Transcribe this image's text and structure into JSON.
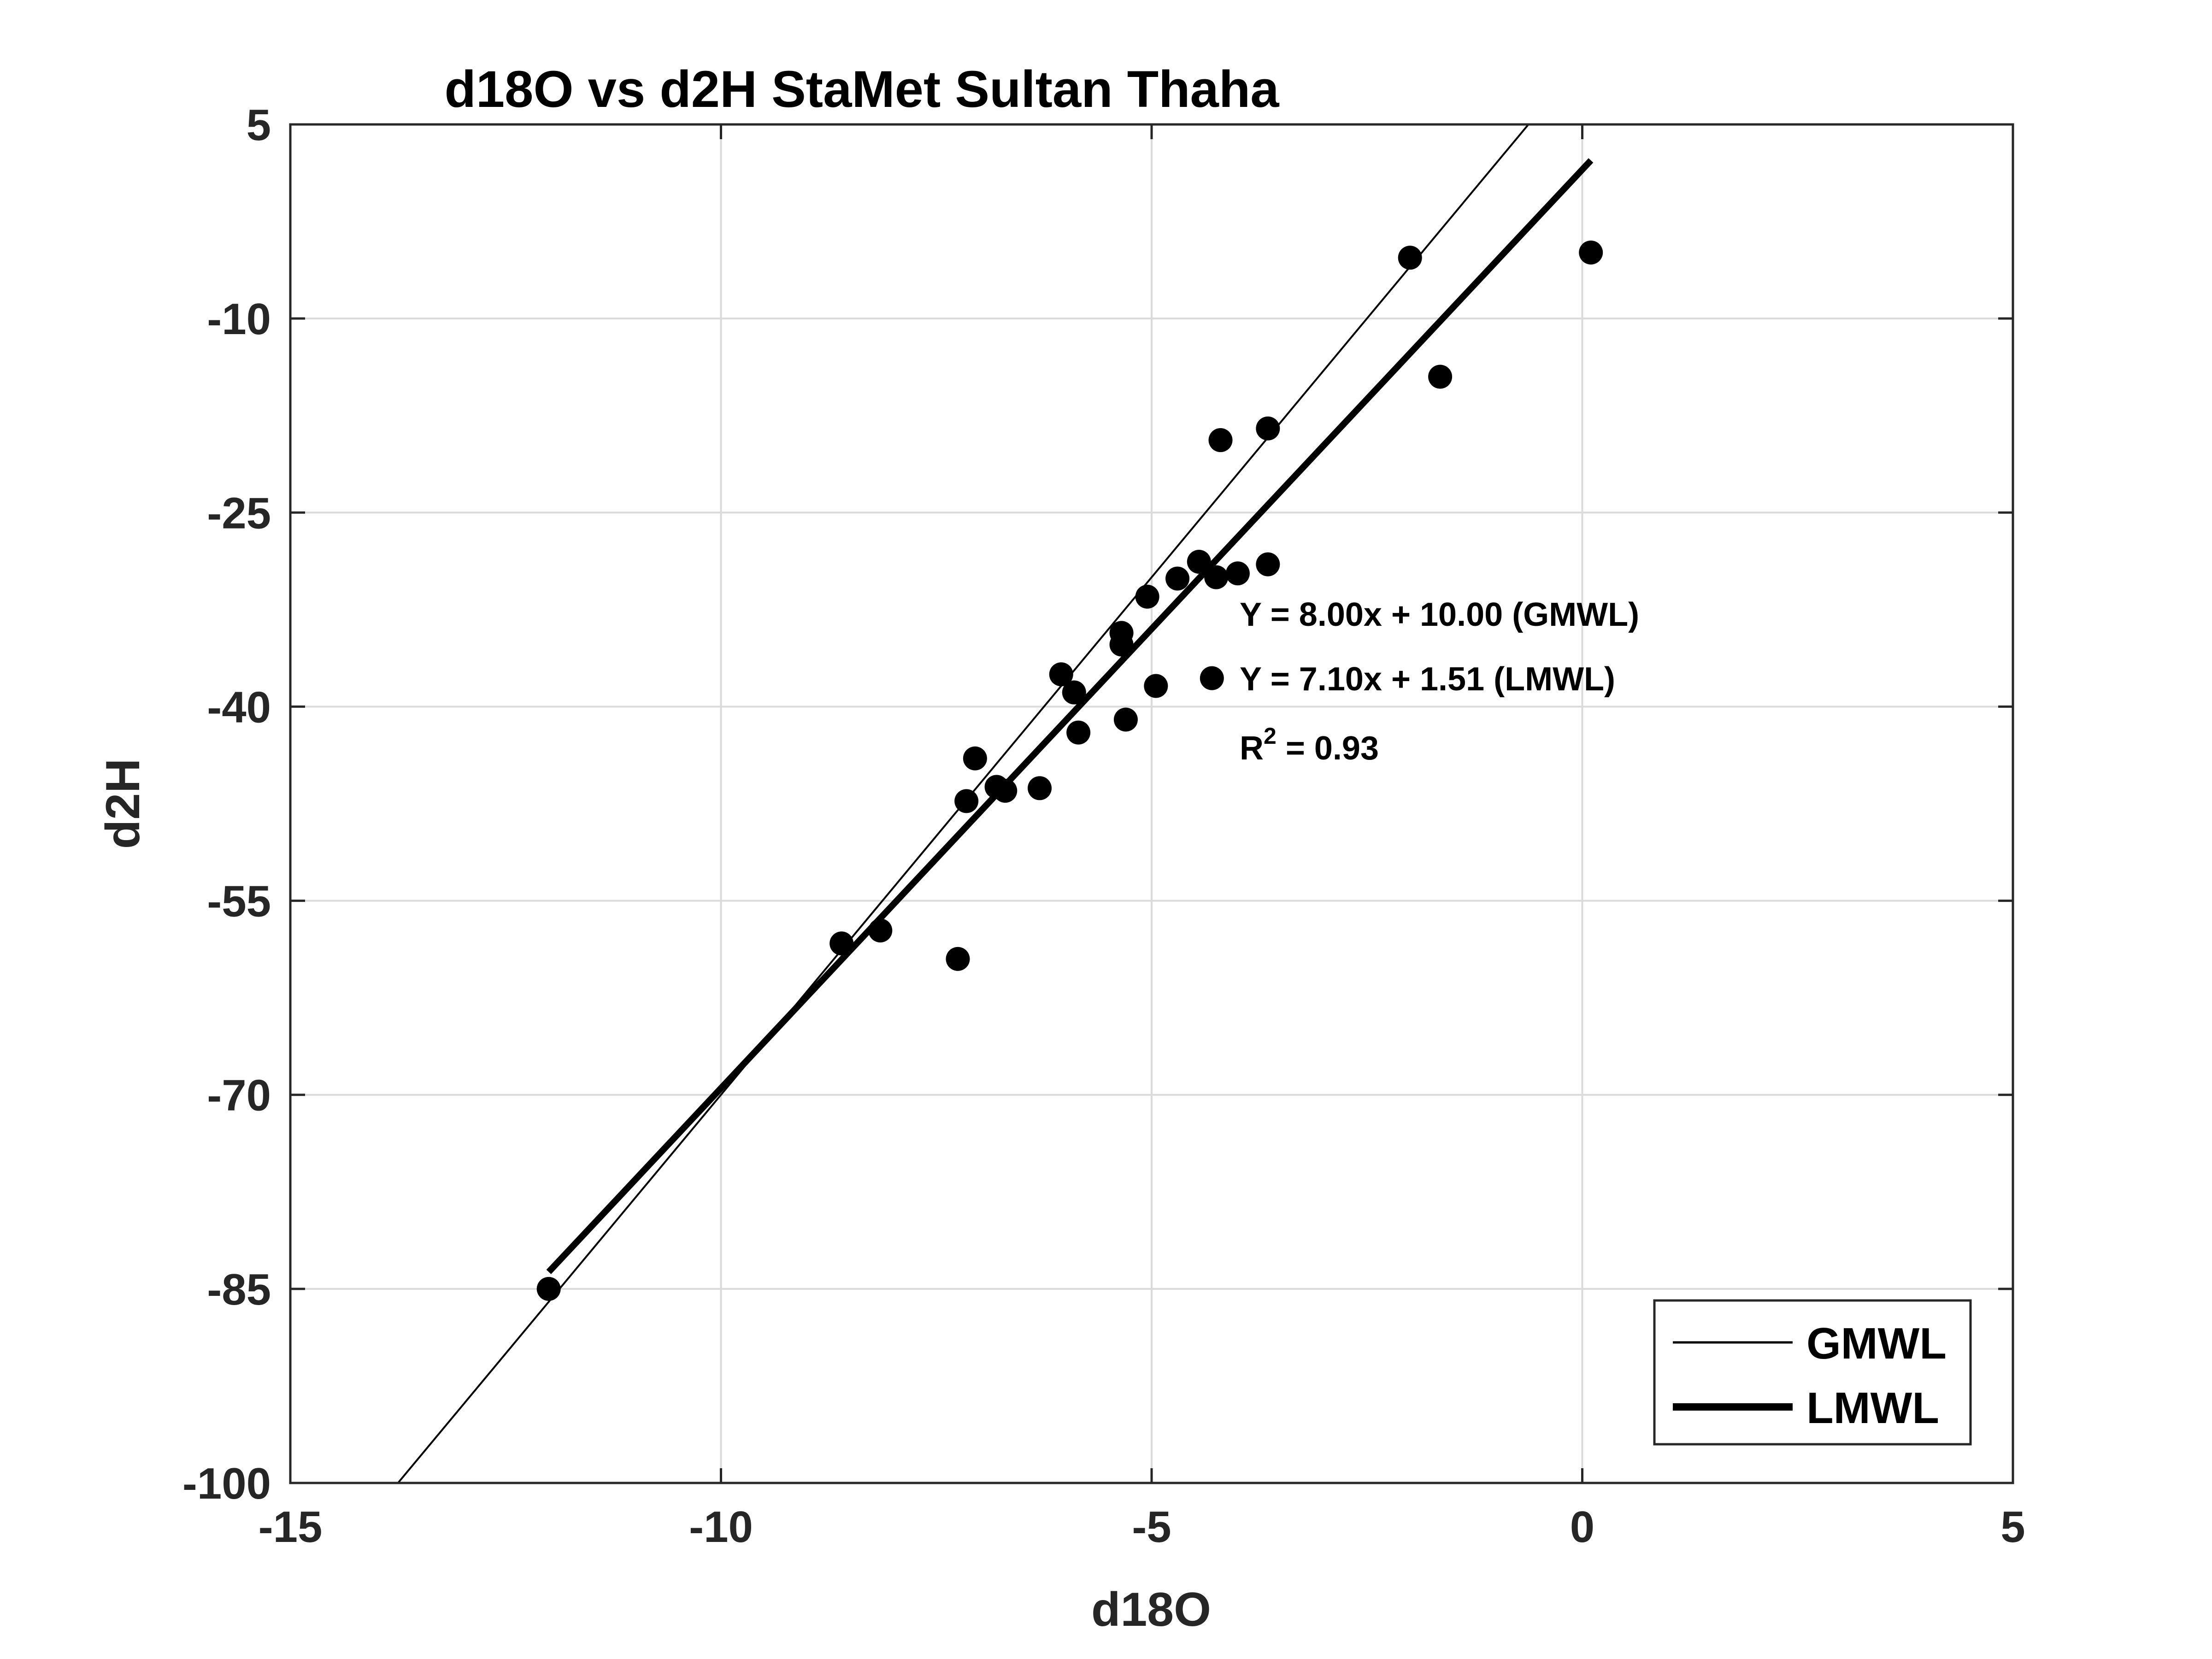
{
  "chart_data": {
    "type": "scatter",
    "title": "d18O vs d2H StaMet Sultan Thaha",
    "xlabel": "d18O",
    "ylabel": "d2H",
    "xlim": [
      -15,
      5
    ],
    "ylim": [
      -100,
      5
    ],
    "xticks": [
      -15,
      -10,
      -5,
      0,
      5
    ],
    "yticks": [
      -100,
      -85,
      -70,
      -55,
      -40,
      -25,
      -10,
      5
    ],
    "xtick_labels": [
      "-15",
      "-10",
      "-5",
      "0",
      "5"
    ],
    "ytick_labels": [
      "-100",
      "-85",
      "-70",
      "-55",
      "-40",
      "-25",
      "-10",
      "5"
    ],
    "grid": true,
    "legend_position": "bottom-right",
    "series": [
      {
        "name": "",
        "kind": "points",
        "color": "#000000",
        "x": [
          -12.0,
          -8.6,
          -8.15,
          -7.25,
          -7.15,
          -7.05,
          -6.8,
          -6.7,
          -6.3,
          -6.05,
          -5.9,
          -5.85,
          -5.35,
          -5.35,
          -5.3,
          -5.05,
          -4.95,
          -4.7,
          -4.45,
          -4.3,
          -4.25,
          -4.2,
          -4.0,
          -3.65,
          -3.65,
          -2.0,
          -1.65,
          0.1
        ],
        "y": [
          -85.0,
          -58.3,
          -57.3,
          -59.5,
          -47.3,
          -44.0,
          -46.2,
          -46.5,
          -46.3,
          -37.5,
          -38.9,
          -42.0,
          -34.3,
          -35.2,
          -41.0,
          -31.5,
          -38.4,
          -30.1,
          -28.8,
          -37.8,
          -30.0,
          -19.4,
          -29.7,
          -18.5,
          -29.0,
          -5.3,
          -14.5,
          -4.9
        ]
      },
      {
        "name": "GMWL",
        "kind": "line",
        "color": "#000000",
        "slope": 8.0,
        "intercept": 10.0,
        "x_range": [
          -13.75,
          -0.625
        ],
        "stroke_width": 4
      },
      {
        "name": "LMWL",
        "kind": "line",
        "color": "#000000",
        "slope": 7.1,
        "intercept": 1.51,
        "x_range": [
          -12.0,
          0.1
        ],
        "stroke_width": 14
      }
    ],
    "annotations": {
      "gmwl_equation": "Y = 8.00x + 10.00 (GMWL)",
      "lmwl_equation": "Y = 7.10x + 1.51 (LMWL)",
      "r2_prefix": "R",
      "r2_superscript": "2",
      "r2_value": " = 0.93"
    },
    "legend": [
      {
        "label": "GMWL"
      },
      {
        "label": "LMWL"
      }
    ]
  }
}
